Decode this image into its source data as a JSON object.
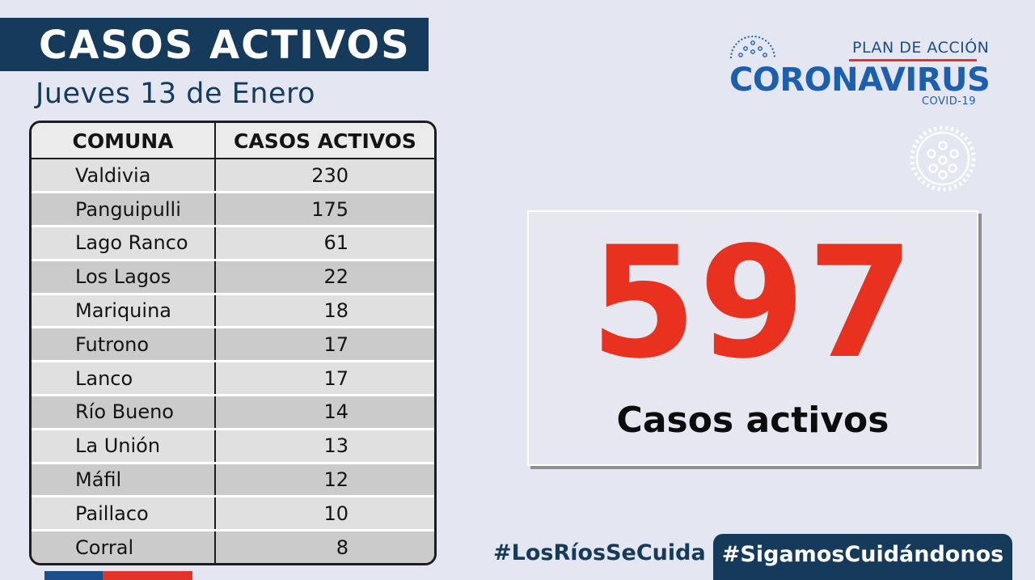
{
  "header": {
    "title": "CASOS ACTIVOS",
    "date": "Jueves 13 de Enero"
  },
  "table": {
    "columns": [
      "COMUNA",
      "CASOS ACTIVOS"
    ],
    "rows": [
      {
        "comuna": "Valdivia",
        "casos": "230"
      },
      {
        "comuna": "Panguipulli",
        "casos": "175"
      },
      {
        "comuna": "Lago Ranco",
        "casos": "61"
      },
      {
        "comuna": "Los Lagos",
        "casos": "22"
      },
      {
        "comuna": "Mariquina",
        "casos": "18"
      },
      {
        "comuna": "Futrono",
        "casos": "17"
      },
      {
        "comuna": "Lanco",
        "casos": "17"
      },
      {
        "comuna": "Río Bueno",
        "casos": "14"
      },
      {
        "comuna": "La Unión",
        "casos": "13"
      },
      {
        "comuna": "Máfil",
        "casos": "12"
      },
      {
        "comuna": "Paillaco",
        "casos": "10"
      },
      {
        "comuna": "Corral",
        "casos": "8"
      }
    ]
  },
  "logo": {
    "plan": "PLAN DE ACCIÓN",
    "name": "CORONAVIRUS",
    "sub": "COVID-19",
    "icon": "virus-icon"
  },
  "total": {
    "number": "597",
    "label": "Casos activos"
  },
  "hashtags": {
    "first": "#LosRíosSeCuida",
    "second": "#SigamosCuidándonos"
  },
  "colors": {
    "navy": "#163a59",
    "accent_red": "#e8311f",
    "logo_blue": "#1b5fae",
    "background": "#e4e6f2"
  }
}
